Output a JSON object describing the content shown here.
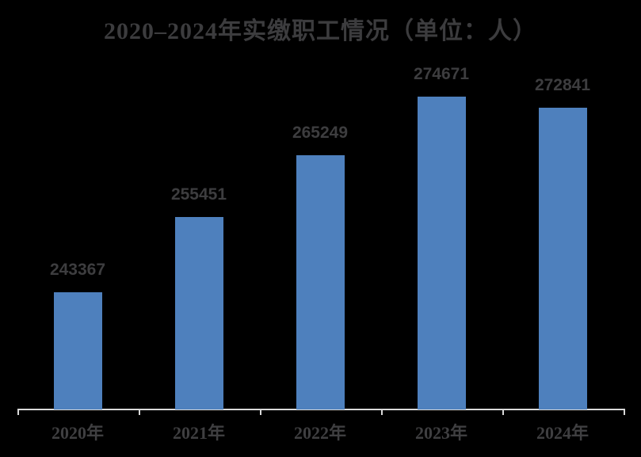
{
  "chart_data": {
    "type": "bar",
    "title": "2020–2024年实缴职工情况（单位：人）",
    "categories": [
      "2020年",
      "2021年",
      "2022年",
      "2023年",
      "2024年"
    ],
    "values": [
      243367,
      255451,
      265249,
      274671,
      272841
    ],
    "data_labels": [
      "243367",
      "255451",
      "265249",
      "274671",
      "272841"
    ],
    "xlabel": "",
    "ylabel": "",
    "ylim": [
      224700,
      281000
    ],
    "grid": false,
    "legend": false,
    "colors": {
      "bar": "#4e80bd",
      "text": "#3d3d3f",
      "axis_line": "#d9d9d9",
      "background": "#000000"
    }
  }
}
